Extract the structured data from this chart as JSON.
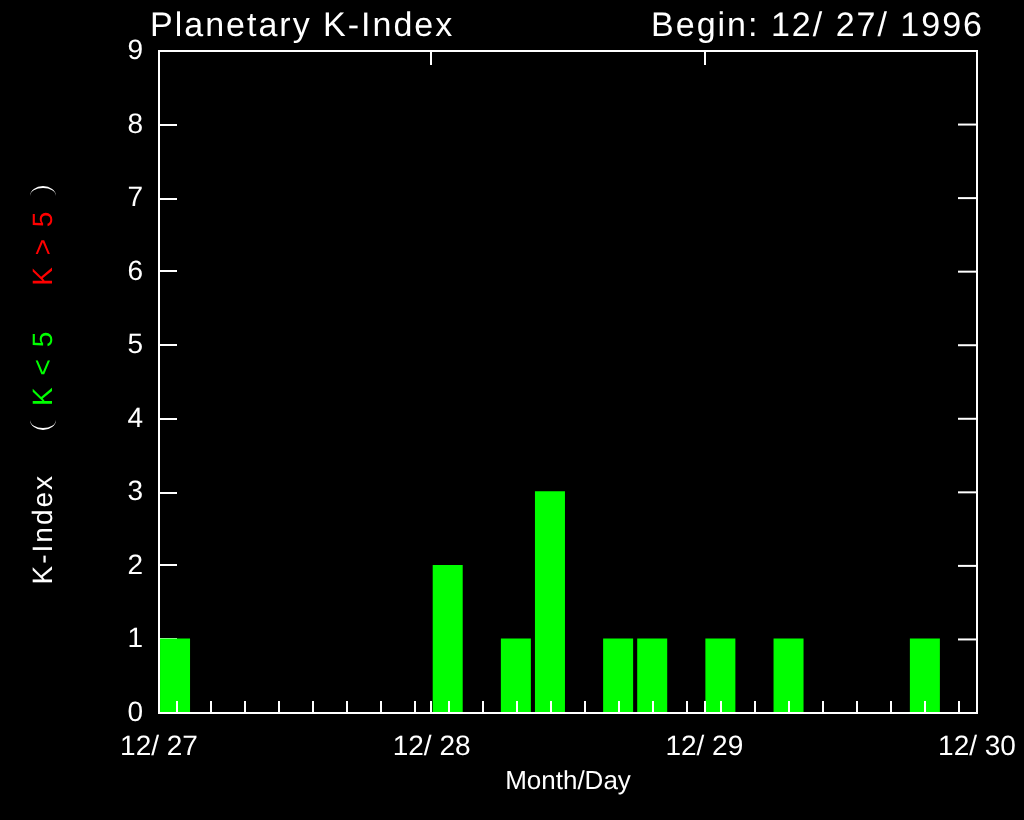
{
  "chart_data": {
    "type": "bar",
    "title": "Planetary K-Index",
    "subtitle": "Begin: 12/ 27/ 1996",
    "xlabel": "Month/Day",
    "ylabel": "K-Index",
    "x": [
      "1996-12-27T01:30",
      "1996-12-28T01:30",
      "1996-12-28T07:30",
      "1996-12-28T10:30",
      "1996-12-28T16:30",
      "1996-12-28T19:30",
      "1996-12-29T01:30",
      "1996-12-29T07:30",
      "1996-12-29T19:30"
    ],
    "series": [
      {
        "name": "K < 5",
        "color": "#00ff00",
        "values": [
          1,
          2,
          1,
          3,
          1,
          1,
          1,
          1,
          1
        ]
      },
      {
        "name": "K > 5",
        "color": "#ff0000",
        "values": [
          null,
          null,
          null,
          null,
          null,
          null,
          null,
          null,
          null
        ]
      }
    ],
    "xlim": [
      "1996-12-27",
      "1996-12-30"
    ],
    "xticks": [
      {
        "value": "1996-12-27",
        "label": "12/ 27"
      },
      {
        "value": "1996-12-27T01:30",
        "label": null
      },
      {
        "value": "1996-12-27T04:30",
        "label": null
      },
      {
        "value": "1996-12-27T07:30",
        "label": null
      },
      {
        "value": "1996-12-27T10:30",
        "label": null
      },
      {
        "value": "1996-12-27T13:30",
        "label": null
      },
      {
        "value": "1996-12-27T16:30",
        "label": null
      },
      {
        "value": "1996-12-27T19:30",
        "label": null
      },
      {
        "value": "1996-12-27T22:30",
        "label": null
      },
      {
        "value": "1996-12-28",
        "label": "12/ 28"
      },
      {
        "value": "1996-12-28T01:30",
        "label": null
      },
      {
        "value": "1996-12-28T04:30",
        "label": null
      },
      {
        "value": "1996-12-28T07:30",
        "label": null
      },
      {
        "value": "1996-12-28T10:30",
        "label": null
      },
      {
        "value": "1996-12-28T13:30",
        "label": null
      },
      {
        "value": "1996-12-28T16:30",
        "label": null
      },
      {
        "value": "1996-12-28T19:30",
        "label": null
      },
      {
        "value": "1996-12-28T22:30",
        "label": null
      },
      {
        "value": "1996-12-29",
        "label": "12/ 29"
      },
      {
        "value": "1996-12-29T01:30",
        "label": null
      },
      {
        "value": "1996-12-29T04:30",
        "label": null
      },
      {
        "value": "1996-12-29T07:30",
        "label": null
      },
      {
        "value": "1996-12-29T10:30",
        "label": null
      },
      {
        "value": "1996-12-29T13:30",
        "label": null
      },
      {
        "value": "1996-12-29T16:30",
        "label": null
      },
      {
        "value": "1996-12-29T19:30",
        "label": null
      },
      {
        "value": "1996-12-29T22:30",
        "label": null
      },
      {
        "value": "1996-12-30",
        "label": "12/ 30"
      }
    ],
    "ylim": [
      0,
      9
    ],
    "yticks": [
      0,
      1,
      2,
      3,
      4,
      5,
      6,
      7,
      8,
      9
    ],
    "legend": "left"
  }
}
